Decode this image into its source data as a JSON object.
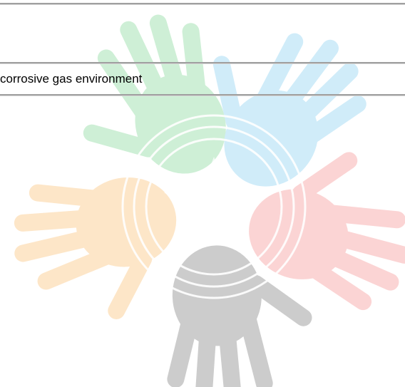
{
  "text": {
    "line": "corrosive gas environment"
  }
}
